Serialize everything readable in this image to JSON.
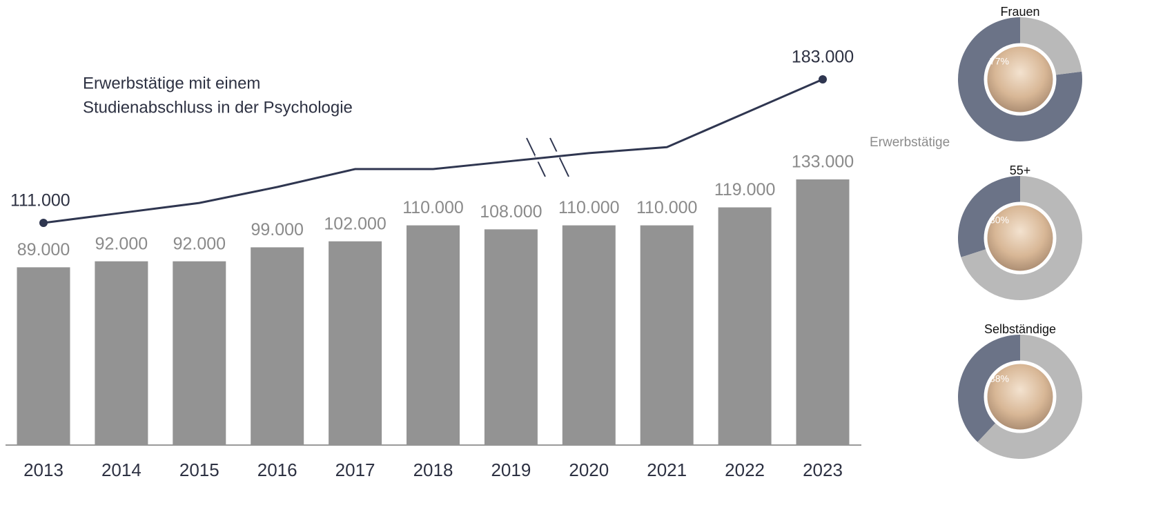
{
  "chart_data": [
    {
      "type": "bar",
      "title": [
        "Erwerbstätige mit einem",
        "Studienabschluss in der Psychologie"
      ],
      "categories": [
        "2013",
        "2014",
        "2015",
        "2016",
        "2017",
        "2018",
        "2019",
        "2020",
        "2021",
        "2022",
        "2023"
      ],
      "series": [
        {
          "type": "bar",
          "color": "#939393",
          "values": [
            89000,
            92000,
            92000,
            99000,
            102000,
            110000,
            108000,
            110000,
            110000,
            119000,
            133000
          ],
          "value_labels": [
            "89.000",
            "92.000",
            "92.000",
            "99.000",
            "102.000",
            "110.000",
            "108.000",
            "110.000",
            "110.000",
            "119.000",
            "133.000"
          ]
        },
        {
          "type": "line",
          "axis": "y2",
          "color": "#2f3650",
          "values": [
            111000,
            116000,
            121000,
            129000,
            138000,
            138000,
            142000,
            146000,
            149000,
            166000,
            183000
          ],
          "value_labels": [
            "111.000",
            null,
            null,
            null,
            null,
            null,
            null,
            null,
            null,
            null,
            "183.000"
          ]
        }
      ],
      "ylim": [
        0,
        133000
      ],
      "y2lim": [
        111000,
        183000
      ]
    },
    {
      "type": "pie",
      "title": "Frauen",
      "annotation": "Erwerbstätige",
      "values": [
        77,
        23
      ],
      "value_labels": [
        "77%",
        null
      ],
      "colors": [
        "#6b7387",
        "#b9b9b9"
      ]
    },
    {
      "type": "pie",
      "title": "55+",
      "values": [
        30,
        70
      ],
      "value_labels": [
        "30%",
        null
      ],
      "colors": [
        "#6b7387",
        "#b9b9b9"
      ]
    },
    {
      "type": "pie",
      "title": "Selbständige",
      "values": [
        38,
        62
      ],
      "value_labels": [
        "38%",
        null
      ],
      "colors": [
        "#6b7387",
        "#b9b9b9"
      ]
    }
  ]
}
